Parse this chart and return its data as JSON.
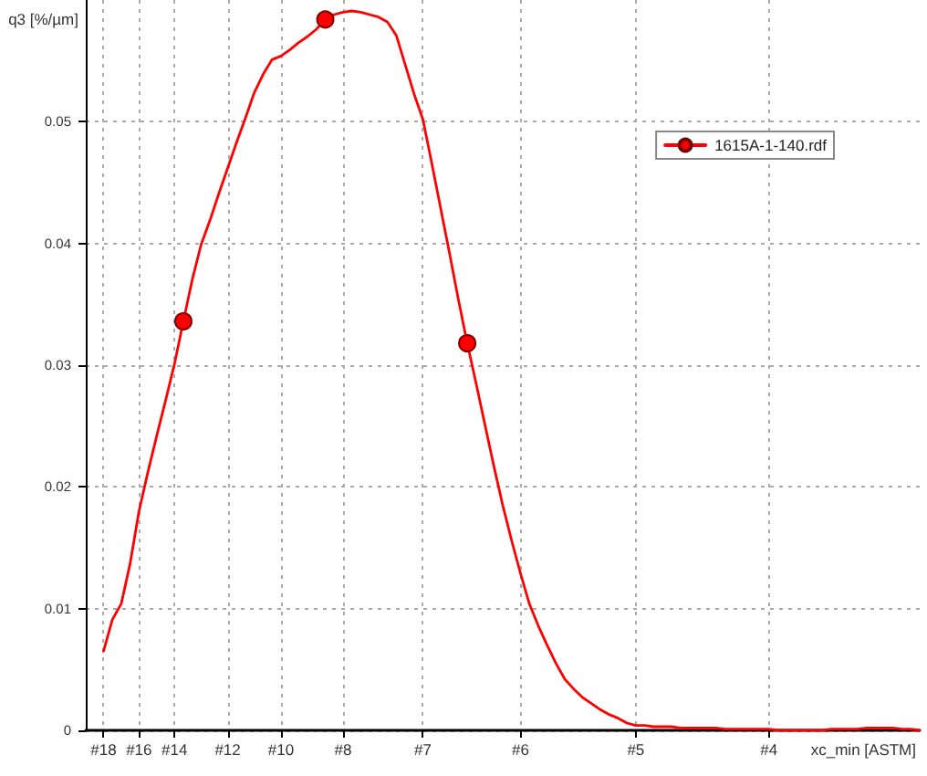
{
  "chart_data": {
    "type": "line",
    "ylabel": "q3 [%/µm]",
    "xlabel": "xc_min [ASTM]",
    "categories": [
      null,
      null,
      "#18",
      null,
      null,
      null,
      "#16",
      null,
      null,
      null,
      "#14",
      null,
      null,
      null,
      null,
      null,
      "#12",
      null,
      null,
      null,
      null,
      null,
      "#10",
      null,
      null,
      null,
      null,
      null,
      null,
      "#8",
      null,
      null,
      null,
      null,
      null,
      null,
      null,
      null,
      "#7",
      null,
      null,
      null,
      null,
      null,
      null,
      null,
      null,
      null,
      null,
      "#6",
      null,
      null,
      null,
      null,
      null,
      null,
      null,
      null,
      null,
      null,
      null,
      null,
      "#5",
      null,
      null,
      null,
      null,
      null,
      null,
      null,
      null,
      null,
      null,
      null,
      null,
      null,
      null,
      "#4",
      null,
      null,
      null,
      null,
      null,
      null,
      null,
      null,
      null,
      null,
      null,
      null,
      null,
      null,
      null,
      null,
      null
    ],
    "ylim": [
      0,
      0.06
    ],
    "yticks": [
      0,
      0.01,
      0.02,
      0.03,
      0.04,
      0.05
    ],
    "grid": true,
    "legend": "top right",
    "line_style": "solid",
    "series": [
      {
        "name": "1615A-1-140.rdf",
        "color": "#ff0000",
        "values": [
          null,
          null,
          0.0065,
          0.0091,
          0.0104,
          0.0137,
          0.018,
          0.0212,
          0.0242,
          0.0271,
          0.0301,
          0.0336,
          0.037,
          0.0399,
          0.0419,
          0.0441,
          0.0462,
          0.0483,
          0.0503,
          0.0524,
          0.0539,
          0.0551,
          0.0554,
          0.0559,
          0.0565,
          0.057,
          0.0576,
          0.0584,
          0.0588,
          0.059,
          0.0591,
          0.059,
          0.0588,
          0.0586,
          0.0582,
          0.0571,
          0.0547,
          0.0523,
          0.0502,
          0.0466,
          0.0429,
          0.0392,
          0.0354,
          0.0318,
          0.0285,
          0.0251,
          0.0217,
          0.0185,
          0.0156,
          0.0129,
          0.0104,
          0.0086,
          0.007,
          0.0055,
          0.0042,
          0.0034,
          0.0027,
          0.0022,
          0.0017,
          0.0013,
          0.001,
          0.0006,
          0.0004,
          0.0004,
          0.0003,
          0.0003,
          0.0003,
          0.0002,
          0.0002,
          0.0002,
          0.0002,
          0.0002,
          0.0001,
          0.0001,
          0.0001,
          0.0001,
          0.0001,
          0.0001,
          0,
          0,
          0,
          0,
          0,
          0,
          0.0001,
          0.0001,
          0.0001,
          0.0001,
          0.0002,
          0.0002,
          0.0002,
          0.0002,
          0.0001,
          0.0001,
          0
        ]
      },
      {
        "type": "scatter",
        "color": "#ff0000",
        "marker": "circle",
        "values": [
          null,
          null,
          null,
          null,
          null,
          null,
          null,
          null,
          null,
          null,
          null,
          0.0336,
          null,
          null,
          null,
          null,
          null,
          null,
          null,
          null,
          null,
          null,
          null,
          null,
          null,
          null,
          null,
          0.0584,
          null,
          null,
          null,
          null,
          null,
          null,
          null,
          null,
          null,
          null,
          null,
          null,
          null,
          null,
          null,
          0.0318,
          null,
          null,
          null,
          null,
          null,
          null,
          null,
          null,
          null,
          null,
          null,
          null,
          null,
          null,
          null,
          null,
          null,
          null,
          null,
          null,
          null,
          null,
          null,
          null,
          null,
          null,
          null,
          null,
          null,
          null,
          null,
          null,
          null,
          null,
          null,
          null,
          null,
          null,
          null,
          null,
          null,
          null,
          null,
          null,
          null,
          null,
          null,
          null,
          null,
          null,
          null
        ]
      }
    ]
  }
}
